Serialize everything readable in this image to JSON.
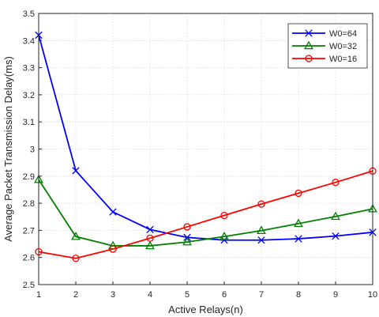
{
  "chart_data": {
    "type": "line",
    "title": "",
    "xlabel": "Active Relays(n)",
    "ylabel": "Average Packet Transmission Delay(ms)",
    "xlim": [
      1,
      10
    ],
    "ylim": [
      2.5,
      3.5
    ],
    "xticks": [
      "1",
      "2",
      "3",
      "4",
      "5",
      "6",
      "7",
      "8",
      "9",
      "10"
    ],
    "yticks": [
      "2.5",
      "2.6",
      "2.7",
      "2.8",
      "2.9",
      "3",
      "3.1",
      "3.2",
      "3.3",
      "3.4",
      "3.5"
    ],
    "grid": true,
    "legend_position": "top-right",
    "x": [
      1,
      2,
      3,
      4,
      5,
      6,
      7,
      8,
      9,
      10
    ],
    "series": [
      {
        "name": "W0=64",
        "color": "#0000ff",
        "marker": "x",
        "values": [
          3.42,
          2.92,
          2.768,
          2.703,
          2.674,
          2.664,
          2.664,
          2.669,
          2.679,
          2.693
        ]
      },
      {
        "name": "W0=32",
        "color": "#008000",
        "marker": "triangle",
        "values": [
          2.887,
          2.677,
          2.643,
          2.643,
          2.657,
          2.677,
          2.699,
          2.725,
          2.751,
          2.779
        ]
      },
      {
        "name": "W0=16",
        "color": "#ff0000",
        "marker": "circle",
        "values": [
          2.621,
          2.597,
          2.631,
          2.671,
          2.713,
          2.755,
          2.797,
          2.837,
          2.877,
          2.919
        ]
      }
    ]
  }
}
